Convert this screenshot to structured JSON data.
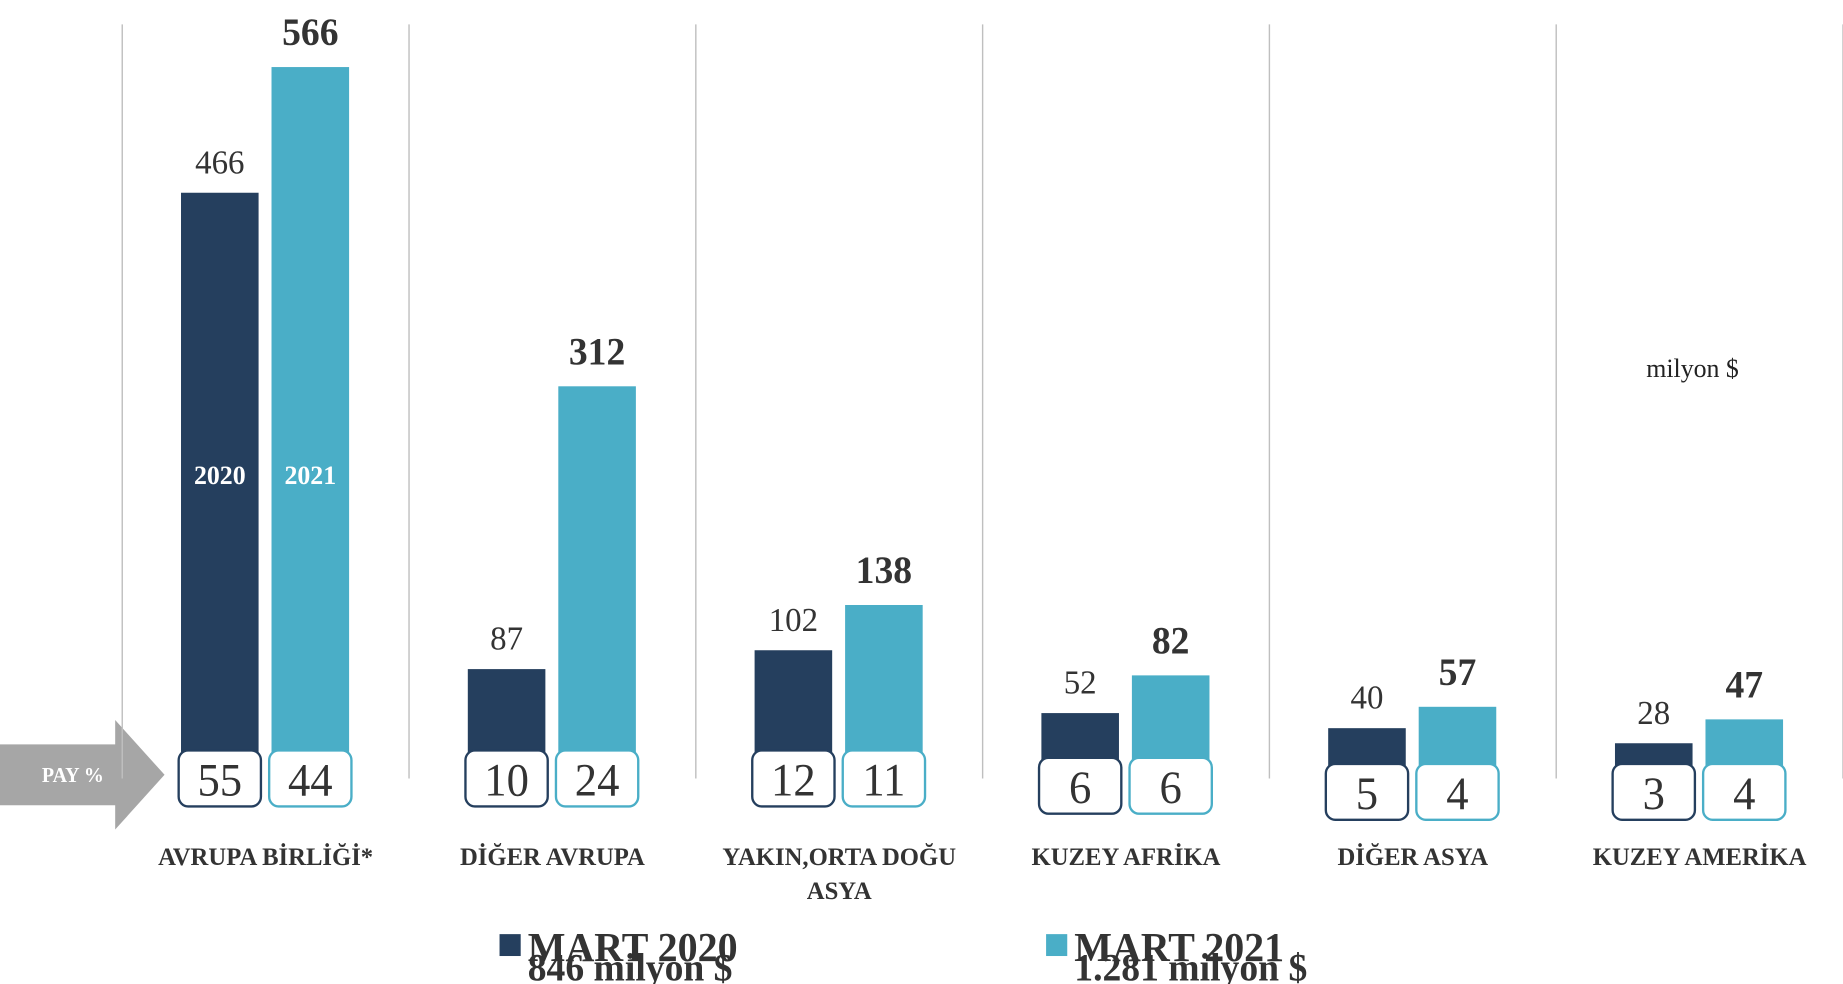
{
  "chart_data": {
    "type": "bar",
    "categories": [
      "AVRUPA BİRLİĞİ*",
      "DİĞER AVRUPA",
      "YAKIN,ORTA DOĞU ASYA",
      "KUZEY AFRİKA",
      "DİĞER ASYA",
      "KUZEY AMERİKA"
    ],
    "series": [
      {
        "name": "MART 2020",
        "total_label": "846 milyon $",
        "bar_label": "2020",
        "color": "#253f5e",
        "values": [
          466,
          87,
          102,
          52,
          40,
          28
        ],
        "shares": [
          55,
          10,
          12,
          6,
          5,
          3
        ]
      },
      {
        "name": "MART 2021",
        "total_label": "1.281 milyon $",
        "bar_label": "2021",
        "color": "#4aaec7",
        "values": [
          566,
          312,
          138,
          82,
          57,
          47
        ],
        "shares": [
          44,
          24,
          11,
          6,
          4,
          4
        ]
      }
    ],
    "share_label": "PAY  %",
    "unit_label": "milyon $",
    "ylim": [
      0,
      600
    ]
  }
}
